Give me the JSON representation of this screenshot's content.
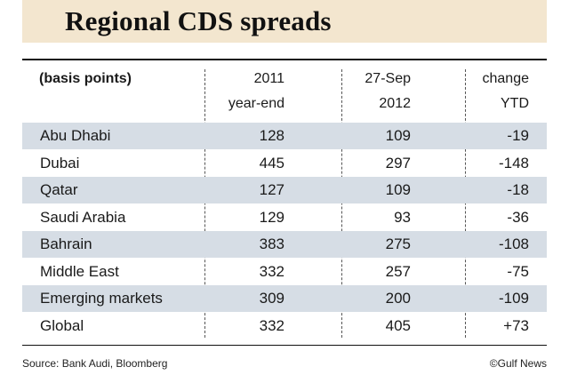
{
  "title": "Regional CDS spreads",
  "header": {
    "label": "(basis points)",
    "col1_line1": "2011",
    "col1_line2": "year-end",
    "col2_line1": "27-Sep",
    "col2_line2": "2012",
    "col3_line1": "change",
    "col3_line2": "YTD"
  },
  "chart_data": {
    "type": "table",
    "title": "Regional CDS spreads",
    "columns": [
      "(basis points)",
      "2011 year-end",
      "27-Sep 2012",
      "change YTD"
    ],
    "rows": [
      {
        "name": "Abu Dhabi",
        "v2011": "128",
        "v2012": "109",
        "change": "-19"
      },
      {
        "name": "Dubai",
        "v2011": "445",
        "v2012": "297",
        "change": "-148"
      },
      {
        "name": "Qatar",
        "v2011": "127",
        "v2012": "109",
        "change": "-18"
      },
      {
        "name": "Saudi Arabia",
        "v2011": "129",
        "v2012": "93",
        "change": "-36"
      },
      {
        "name": "Bahrain",
        "v2011": "383",
        "v2012": "275",
        "change": "-108"
      },
      {
        "name": "Middle East",
        "v2011": "332",
        "v2012": "257",
        "change": "-75"
      },
      {
        "name": "Emerging markets",
        "v2011": "309",
        "v2012": "200",
        "change": "-109"
      },
      {
        "name": "Global",
        "v2011": "332",
        "v2012": "405",
        "change": "+73"
      }
    ]
  },
  "footer": {
    "source": "Source: Bank Audi, Bloomberg",
    "credit": "©Gulf News"
  },
  "colors": {
    "title_band": "#f3e6cf",
    "row_shade": "#d6dde5"
  }
}
